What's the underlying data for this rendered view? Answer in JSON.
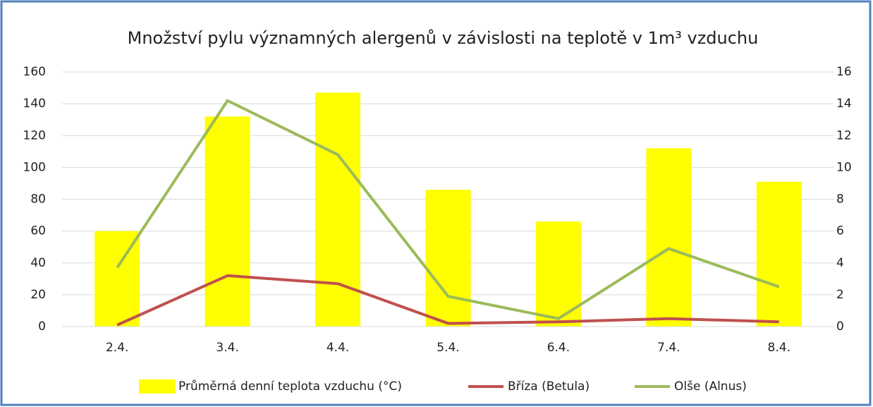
{
  "chart_data": {
    "type": "bar-line",
    "title": "Množství pylu významných alergenů v závislosti na teplotě v 1m³ vzduchu",
    "categories": [
      "2.4.",
      "3.4.",
      "4.4.",
      "5.4.",
      "6.4.",
      "7.4.",
      "8.4."
    ],
    "series": [
      {
        "name": "Průměrná denní teplota vzduchu (°C)",
        "type": "bar",
        "axis": "y2",
        "color": "#ffff00",
        "values": [
          6,
          13.2,
          14.7,
          8.6,
          6.6,
          11.2,
          9.1
        ]
      },
      {
        "name": "Bříza (Betula)",
        "type": "line",
        "color": "#c0504d",
        "values": [
          1,
          32,
          27,
          2,
          3,
          5,
          3
        ]
      },
      {
        "name": "Olše (Alnus)",
        "type": "line",
        "color": "#9bbb59",
        "values": [
          37,
          142,
          108,
          19,
          5,
          49,
          25
        ]
      }
    ],
    "ylim": [
      0,
      160
    ],
    "yticks": [
      0,
      20,
      40,
      60,
      80,
      100,
      120,
      140,
      160
    ],
    "y2lim": [
      0,
      16
    ],
    "y2ticks": [
      0,
      2,
      4,
      6,
      8,
      10,
      12,
      14,
      16
    ],
    "grid": true,
    "legend": "bottom"
  }
}
